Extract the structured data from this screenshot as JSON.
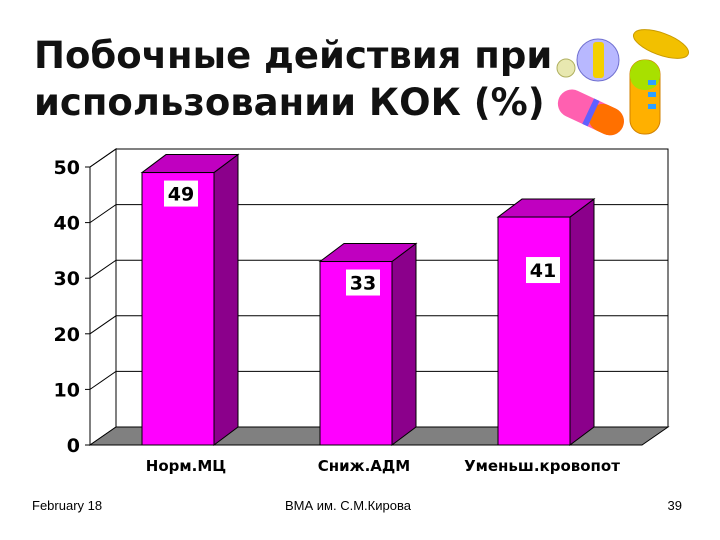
{
  "slide": {
    "title_line1": "Побочные действия при",
    "title_line2": "использовании КОК (%)"
  },
  "footer": {
    "date": "February 18",
    "org": "ВМА им. С.М.Кирова",
    "page": "39"
  },
  "decoration": {
    "icon": "pills-capsules-icon"
  },
  "colors": {
    "bar_front": "#ff00ff",
    "bar_side": "#8b008b",
    "bar_top": "#c000c0",
    "floor": "#808080"
  },
  "chart_data": {
    "type": "bar",
    "categories": [
      "Норм.МЦ",
      "Сниж.АДМ",
      "Уменьш.кровопот"
    ],
    "values": [
      49,
      33,
      41
    ],
    "data_labels": [
      "49",
      "33",
      "41"
    ],
    "title": "",
    "xlabel": "",
    "ylabel": "",
    "ylim": [
      0,
      50
    ],
    "yticks": [
      "0",
      "10",
      "20",
      "30",
      "40",
      "50"
    ],
    "grid": true,
    "legend": "none",
    "style": "3d"
  }
}
